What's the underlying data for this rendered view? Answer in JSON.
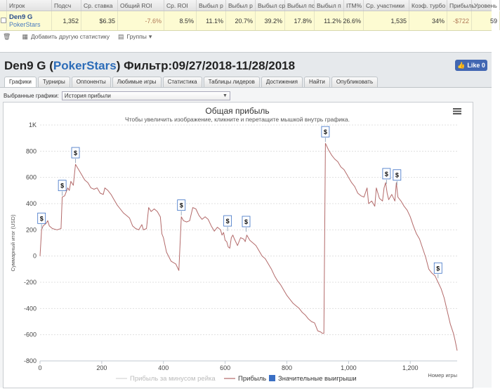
{
  "stats_table": {
    "headers": [
      "",
      "Игрок",
      "Подсч",
      "Ср. ставка",
      "Общий ROI",
      "Ср. ROI",
      "Выбыл р",
      "Выбыл р",
      "Выбыл ср",
      "Выбыл пс",
      "Выбыл п",
      "ITM%",
      "Ср. участники",
      "Коэф. турбо",
      "Прибыль",
      "Уровень"
    ],
    "row": {
      "player_name": "Den9 G",
      "site": "PokerStars",
      "values": [
        "1,352",
        "$6.35",
        "-7.6%",
        "8.5%",
        "11.1%",
        "20.7%",
        "39.2%",
        "17.8%",
        "11.2%",
        "26.6%",
        "1,535",
        "34%",
        "-$722",
        "59"
      ]
    }
  },
  "toolbar": {
    "add_stat_label": "Добавить другую статистику",
    "groups_label": "Группы"
  },
  "header": {
    "player": "Den9 G",
    "site": "PokerStars",
    "filter_text": "Фильтр:09/27/2018-11/28/2018",
    "like_label": "Like 0"
  },
  "tabs": [
    "Графики",
    "Турниры",
    "Оппоненты",
    "Любимые игры",
    "Статистика",
    "Таблицы лидеров",
    "Достижения",
    "Найти",
    "Опубликовать"
  ],
  "active_tab": "Графики",
  "selector": {
    "label": "Выбранные графики:",
    "value": "История прибыли"
  },
  "chart_data": {
    "type": "line",
    "title": "Общая прибыль",
    "subtitle": "Чтобы увеличить изображение, кликните и перетащите мышкой внутрь графика.",
    "xlabel": "Номер игры",
    "ylabel": "Суммарный итог (USD)",
    "xlim": [
      0,
      1352
    ],
    "ylim": [
      -800,
      1000
    ],
    "x_ticks": [
      0,
      200,
      400,
      600,
      800,
      1000,
      1200
    ],
    "x_tick_labels": [
      "0",
      "200",
      "400",
      "600",
      "800",
      "1,000",
      "1,200"
    ],
    "y_ticks": [
      -800,
      -600,
      -400,
      -200,
      0,
      200,
      400,
      600,
      800,
      1000
    ],
    "y_tick_labels": [
      "-800",
      "-600",
      "-400",
      "-200",
      "0",
      "200",
      "400",
      "600",
      "800",
      "1K"
    ],
    "grid": true,
    "legend": [
      "Прибыль за минусом рейка",
      "Прибыль",
      "Значительные выигрыши"
    ],
    "legend_position": "bottom",
    "colors": {
      "profit": "#b36a6a",
      "rake_line": "#cccccc",
      "big_wins": "#3a6fc4",
      "marker_border": "#3a6fc4"
    },
    "series": [
      {
        "name": "Прибыль",
        "points": [
          [
            0,
            0
          ],
          [
            5,
            200
          ],
          [
            10,
            230
          ],
          [
            20,
            250
          ],
          [
            25,
            270
          ],
          [
            30,
            230
          ],
          [
            40,
            210
          ],
          [
            55,
            200
          ],
          [
            68,
            210
          ],
          [
            72,
            450
          ],
          [
            80,
            460
          ],
          [
            90,
            520
          ],
          [
            95,
            500
          ],
          [
            100,
            570
          ],
          [
            108,
            540
          ],
          [
            115,
            700
          ],
          [
            125,
            660
          ],
          [
            135,
            620
          ],
          [
            145,
            580
          ],
          [
            155,
            560
          ],
          [
            165,
            520
          ],
          [
            175,
            510
          ],
          [
            185,
            520
          ],
          [
            195,
            480
          ],
          [
            205,
            470
          ],
          [
            210,
            520
          ],
          [
            220,
            500
          ],
          [
            230,
            470
          ],
          [
            240,
            430
          ],
          [
            250,
            390
          ],
          [
            260,
            360
          ],
          [
            270,
            330
          ],
          [
            280,
            310
          ],
          [
            290,
            290
          ],
          [
            300,
            230
          ],
          [
            310,
            210
          ],
          [
            320,
            200
          ],
          [
            330,
            240
          ],
          [
            335,
            200
          ],
          [
            345,
            210
          ],
          [
            352,
            370
          ],
          [
            360,
            340
          ],
          [
            370,
            360
          ],
          [
            380,
            340
          ],
          [
            390,
            300
          ],
          [
            395,
            170
          ],
          [
            400,
            140
          ],
          [
            410,
            30
          ],
          [
            425,
            -40
          ],
          [
            440,
            -60
          ],
          [
            450,
            -110
          ],
          [
            458,
            300
          ],
          [
            465,
            270
          ],
          [
            475,
            260
          ],
          [
            485,
            270
          ],
          [
            495,
            370
          ],
          [
            505,
            360
          ],
          [
            515,
            310
          ],
          [
            525,
            280
          ],
          [
            535,
            300
          ],
          [
            545,
            280
          ],
          [
            555,
            230
          ],
          [
            565,
            190
          ],
          [
            575,
            220
          ],
          [
            585,
            200
          ],
          [
            590,
            160
          ],
          [
            595,
            180
          ],
          [
            600,
            120
          ],
          [
            605,
            110
          ],
          [
            610,
            70
          ],
          [
            615,
            60
          ],
          [
            620,
            140
          ],
          [
            625,
            160
          ],
          [
            630,
            130
          ],
          [
            640,
            80
          ],
          [
            650,
            140
          ],
          [
            660,
            130
          ],
          [
            665,
            110
          ],
          [
            670,
            160
          ],
          [
            680,
            120
          ],
          [
            690,
            100
          ],
          [
            700,
            80
          ],
          [
            710,
            40
          ],
          [
            720,
            0
          ],
          [
            730,
            -20
          ],
          [
            740,
            -60
          ],
          [
            750,
            -100
          ],
          [
            760,
            -150
          ],
          [
            770,
            -190
          ],
          [
            780,
            -220
          ],
          [
            790,
            -260
          ],
          [
            800,
            -300
          ],
          [
            810,
            -330
          ],
          [
            820,
            -360
          ],
          [
            830,
            -380
          ],
          [
            840,
            -400
          ],
          [
            850,
            -430
          ],
          [
            860,
            -450
          ],
          [
            870,
            -480
          ],
          [
            880,
            -500
          ],
          [
            890,
            -510
          ],
          [
            900,
            -570
          ],
          [
            910,
            -580
          ],
          [
            915,
            -590
          ],
          [
            920,
            -590
          ],
          [
            925,
            860
          ],
          [
            935,
            810
          ],
          [
            945,
            770
          ],
          [
            955,
            740
          ],
          [
            965,
            720
          ],
          [
            975,
            680
          ],
          [
            985,
            660
          ],
          [
            995,
            620
          ],
          [
            1000,
            600
          ],
          [
            1010,
            560
          ],
          [
            1020,
            530
          ],
          [
            1030,
            480
          ],
          [
            1040,
            460
          ],
          [
            1050,
            450
          ],
          [
            1060,
            520
          ],
          [
            1065,
            400
          ],
          [
            1075,
            420
          ],
          [
            1085,
            380
          ],
          [
            1090,
            520
          ],
          [
            1100,
            440
          ],
          [
            1110,
            420
          ],
          [
            1115,
            520
          ],
          [
            1120,
            560
          ],
          [
            1125,
            480
          ],
          [
            1130,
            430
          ],
          [
            1140,
            470
          ],
          [
            1150,
            420
          ],
          [
            1155,
            560
          ],
          [
            1160,
            450
          ],
          [
            1170,
            420
          ],
          [
            1180,
            380
          ],
          [
            1190,
            350
          ],
          [
            1200,
            300
          ],
          [
            1210,
            230
          ],
          [
            1220,
            170
          ],
          [
            1230,
            130
          ],
          [
            1240,
            60
          ],
          [
            1250,
            -10
          ],
          [
            1260,
            -100
          ],
          [
            1270,
            -130
          ],
          [
            1280,
            -150
          ],
          [
            1290,
            -200
          ],
          [
            1300,
            -250
          ],
          [
            1310,
            -320
          ],
          [
            1320,
            -420
          ],
          [
            1330,
            -520
          ],
          [
            1340,
            -590
          ],
          [
            1345,
            -640
          ],
          [
            1352,
            -722
          ]
        ]
      }
    ],
    "big_win_markers": [
      {
        "x": 5,
        "y": 200,
        "label": "$"
      },
      {
        "x": 72,
        "y": 450,
        "label": "$"
      },
      {
        "x": 115,
        "y": 700,
        "label": "$"
      },
      {
        "x": 458,
        "y": 300,
        "label": "$"
      },
      {
        "x": 608,
        "y": 180,
        "label": "$"
      },
      {
        "x": 668,
        "y": 175,
        "label": "$"
      },
      {
        "x": 925,
        "y": 860,
        "label": "$"
      },
      {
        "x": 1123,
        "y": 540,
        "label": "$"
      },
      {
        "x": 1157,
        "y": 530,
        "label": "$"
      },
      {
        "x": 1290,
        "y": -180,
        "label": "$"
      }
    ]
  }
}
